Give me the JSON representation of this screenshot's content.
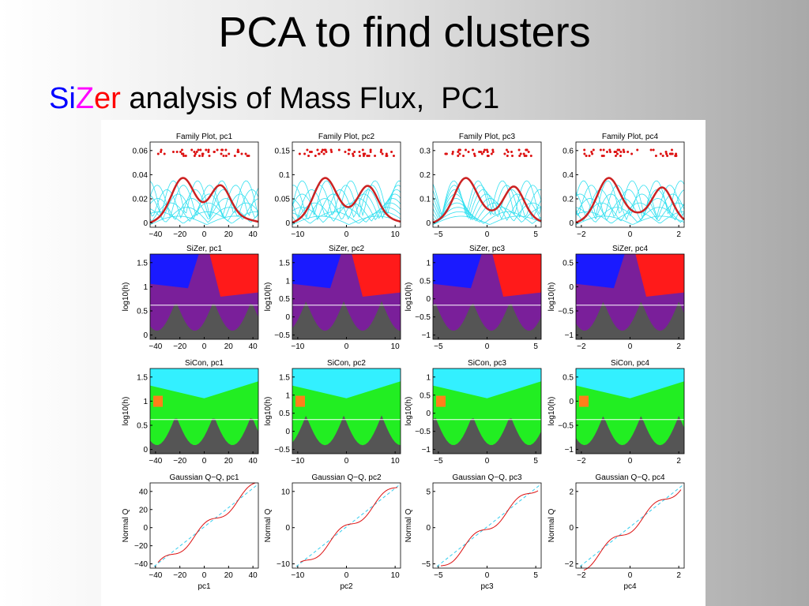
{
  "slide": {
    "title": "PCA to find clusters",
    "subtitle": [
      {
        "text": "Si",
        "color": "#0000ff"
      },
      {
        "text": "Z",
        "color": "#ff00ff"
      },
      {
        "text": "er",
        "color": "#ff0000"
      },
      {
        "text": " analysis of Mass Flux,  PC1",
        "color": "#000000"
      }
    ]
  },
  "figure": {
    "panels": [
      {
        "title": "Family Plot, pc1",
        "xticks": [
          "−40",
          "−20",
          "0",
          "20",
          "40"
        ],
        "yticks": [
          "0",
          "0.02",
          "0.04",
          "0.06"
        ]
      },
      {
        "title": "Family Plot, pc2",
        "xticks": [
          "−10",
          "0",
          "10"
        ],
        "yticks": [
          "0",
          "0.05",
          "0.1",
          "0.15"
        ]
      },
      {
        "title": "Family Plot, pc3",
        "xticks": [
          "−5",
          "0",
          "5"
        ],
        "yticks": [
          "0",
          "0.1",
          "0.2",
          "0.3"
        ]
      },
      {
        "title": "Family Plot, pc4",
        "xticks": [
          "−2",
          "0",
          "2"
        ],
        "yticks": [
          "0",
          "0.2",
          "0.4",
          "0.6"
        ]
      },
      {
        "title": "SiZer, pc1",
        "ylabel": "log10(h)",
        "xticks": [
          "−40",
          "−20",
          "0",
          "20",
          "40"
        ],
        "yticks": [
          "0",
          "0.5",
          "1",
          "1.5"
        ]
      },
      {
        "title": "SiZer, pc2",
        "ylabel": "log10(h)",
        "xticks": [
          "−10",
          "0",
          "10"
        ],
        "yticks": [
          "−0.5",
          "0",
          "0.5",
          "1",
          "1.5"
        ]
      },
      {
        "title": "SiZer, pc3",
        "ylabel": "log10(h)",
        "xticks": [
          "−5",
          "0",
          "5"
        ],
        "yticks": [
          "−1",
          "−0.5",
          "0",
          "0.5",
          "1"
        ]
      },
      {
        "title": "SiZer, pc4",
        "ylabel": "log10(h)",
        "xticks": [
          "−2",
          "0",
          "2"
        ],
        "yticks": [
          "−1",
          "−0.5",
          "0",
          "0.5"
        ]
      },
      {
        "title": "SiCon, pc1",
        "ylabel": "log10(h)",
        "xticks": [
          "−40",
          "−20",
          "0",
          "20",
          "40"
        ],
        "yticks": [
          "0",
          "0.5",
          "1",
          "1.5"
        ]
      },
      {
        "title": "SiCon, pc2",
        "ylabel": "log10(h)",
        "xticks": [
          "−10",
          "0",
          "10"
        ],
        "yticks": [
          "−0.5",
          "0",
          "0.5",
          "1",
          "1.5"
        ]
      },
      {
        "title": "SiCon, pc3",
        "ylabel": "log10(h)",
        "xticks": [
          "−5",
          "0",
          "5"
        ],
        "yticks": [
          "−1",
          "−0.5",
          "0",
          "0.5",
          "1"
        ]
      },
      {
        "title": "SiCon, pc4",
        "ylabel": "log10(h)",
        "xticks": [
          "−2",
          "0",
          "2"
        ],
        "yticks": [
          "−1",
          "−0.5",
          "0",
          "0.5"
        ]
      },
      {
        "title": "Gaussian Q−Q, pc1",
        "ylabel": "Normal Q",
        "xlabel": "pc1",
        "xticks": [
          "−40",
          "−20",
          "0",
          "20",
          "40"
        ],
        "yticks": [
          "−40",
          "−20",
          "0",
          "20",
          "40"
        ]
      },
      {
        "title": "Gaussian Q−Q, pc2",
        "ylabel": "Normal Q",
        "xlabel": "pc2",
        "xticks": [
          "−10",
          "0",
          "10"
        ],
        "yticks": [
          "−10",
          "0",
          "10"
        ]
      },
      {
        "title": "Gaussian Q−Q, pc3",
        "ylabel": "Normal Q",
        "xlabel": "pc3",
        "xticks": [
          "−5",
          "0",
          "5"
        ],
        "yticks": [
          "−5",
          "0",
          "5"
        ]
      },
      {
        "title": "Gaussian Q−Q, pc4",
        "ylabel": "Normal Q",
        "xlabel": "pc4",
        "xticks": [
          "−2",
          "0",
          "2"
        ],
        "yticks": [
          "−2",
          "0",
          "2"
        ]
      }
    ]
  }
}
